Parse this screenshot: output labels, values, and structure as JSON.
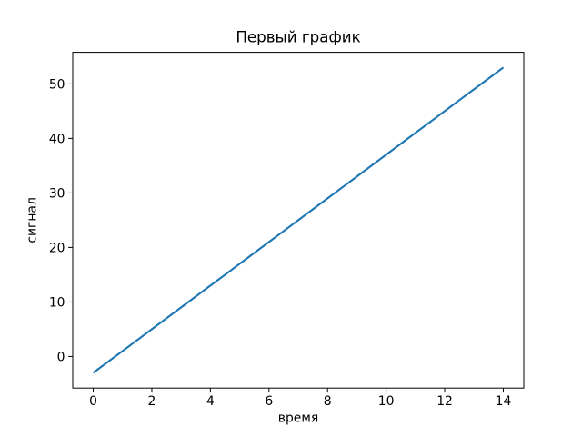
{
  "figure": {
    "background": "#ffffff",
    "text_color": "#000000"
  },
  "chart_data": {
    "type": "line",
    "title": "Первый график",
    "xlabel": "время",
    "ylabel": "сигнал",
    "x": [
      0,
      1,
      2,
      3,
      4,
      5,
      6,
      7,
      8,
      9,
      10,
      11,
      12,
      13,
      14
    ],
    "values": [
      -3,
      1,
      5,
      9,
      13,
      17,
      21,
      25,
      29,
      33,
      37,
      41,
      45,
      49,
      53
    ],
    "line_color": "#1f77b4",
    "xlim": [
      -0.7,
      14.7
    ],
    "ylim": [
      -5.8,
      55.8
    ],
    "xticks": [
      0,
      2,
      4,
      6,
      8,
      10,
      12,
      14
    ],
    "yticks": [
      0,
      10,
      20,
      30,
      40,
      50
    ],
    "grid": false,
    "legend": "none"
  }
}
